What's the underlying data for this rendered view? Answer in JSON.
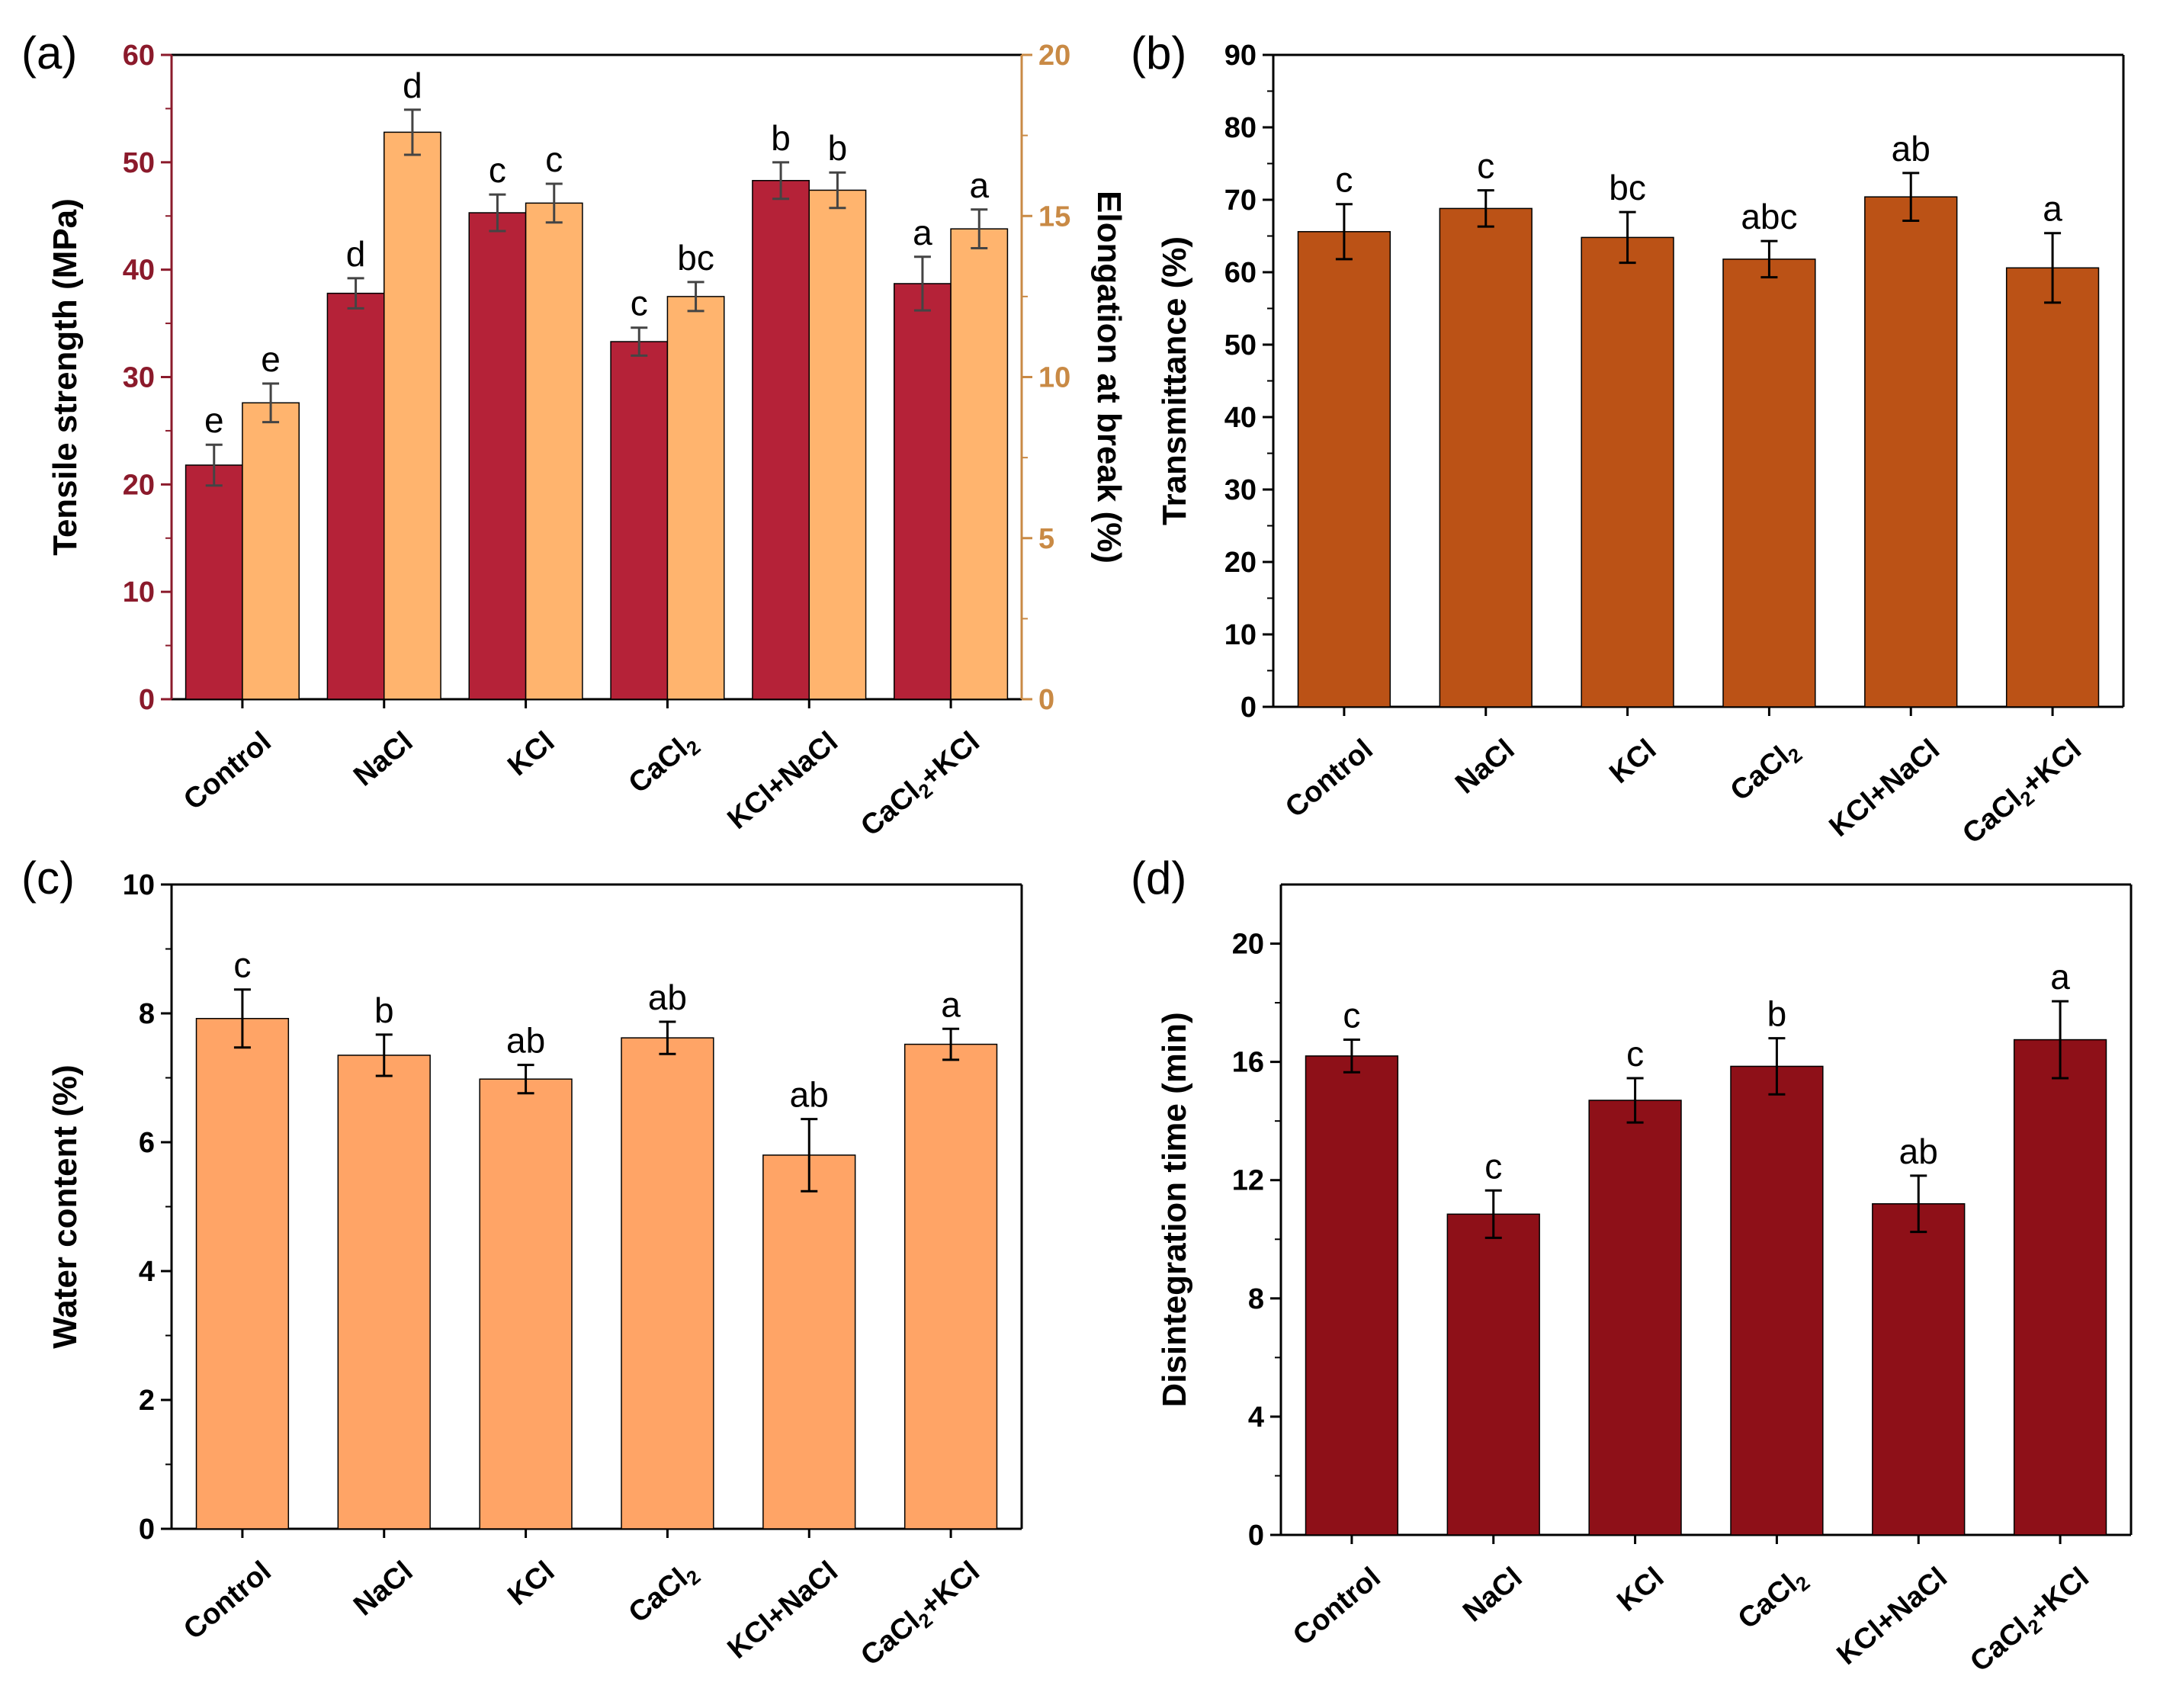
{
  "chart_data": [
    {
      "id": "a",
      "panel_label": "(a)",
      "type": "bar",
      "categories": [
        "Control",
        "NaCl",
        "KCl",
        "CaCl2",
        "KCl+NaCl",
        "CaCl2+KCl"
      ],
      "ylabel": "Tensile strength (MPa)",
      "y2label": "Elongation at break (%)",
      "ylim": [
        0,
        60
      ],
      "yticks": [
        0,
        10,
        20,
        30,
        40,
        50,
        60
      ],
      "y2lim": [
        0,
        20
      ],
      "y2ticks": [
        0,
        5,
        10,
        15,
        20
      ],
      "series": [
        {
          "name": "Tensile strength",
          "axis": "left",
          "color": "#b52238",
          "values": [
            21.8,
            37.8,
            45.3,
            33.3,
            48.3,
            38.7
          ],
          "errors": [
            1.9,
            1.4,
            1.7,
            1.3,
            1.7,
            2.5
          ],
          "letters": [
            "e",
            "d",
            "c",
            "c",
            "b",
            "a"
          ]
        },
        {
          "name": "Elongation at break",
          "axis": "right",
          "color": "#ffb46e",
          "values": [
            9.2,
            17.6,
            15.4,
            12.5,
            15.8,
            14.6
          ],
          "errors": [
            0.6,
            0.7,
            0.6,
            0.45,
            0.55,
            0.6
          ],
          "letters": [
            "e",
            "d",
            "c",
            "bc",
            "b",
            "a"
          ]
        }
      ],
      "left_axis_color": "#8b1a2b",
      "right_axis_color": "#c98a45"
    },
    {
      "id": "b",
      "panel_label": "(b)",
      "type": "bar",
      "categories": [
        "Control",
        "NaCl",
        "KCl",
        "CaCl2",
        "KCl+NaCl",
        "CaCl2+KCl"
      ],
      "ylabel": "Transmittance (%)",
      "ylim": [
        0,
        90
      ],
      "yticks": [
        0,
        10,
        20,
        30,
        40,
        50,
        60,
        70,
        80,
        90
      ],
      "series": [
        {
          "name": "Transmittance",
          "color": "#bb5216",
          "values": [
            65.6,
            68.8,
            64.8,
            61.8,
            70.4,
            60.6
          ],
          "errors": [
            3.8,
            2.5,
            3.5,
            2.5,
            3.3,
            4.8
          ],
          "letters": [
            "c",
            "c",
            "bc",
            "abc",
            "ab",
            "a"
          ]
        }
      ]
    },
    {
      "id": "c",
      "panel_label": "(c)",
      "type": "bar",
      "categories": [
        "Control",
        "NaCl",
        "KCl",
        "CaCl2",
        "KCl+NaCl",
        "CaCl2+KCl"
      ],
      "ylabel": "Water content (%)",
      "ylim": [
        0,
        10
      ],
      "yticks": [
        0,
        2,
        4,
        6,
        8,
        10
      ],
      "series": [
        {
          "name": "Water content",
          "color": "#ffa466",
          "values": [
            7.92,
            7.35,
            6.98,
            7.62,
            5.8,
            7.52
          ],
          "errors": [
            0.45,
            0.32,
            0.22,
            0.25,
            0.56,
            0.24
          ],
          "letters": [
            "c",
            "b",
            "ab",
            "ab",
            "ab",
            "a"
          ]
        }
      ]
    },
    {
      "id": "d",
      "panel_label": "(d)",
      "type": "bar",
      "categories": [
        "Control",
        "NaCl",
        "KCl",
        "CaCl2",
        "KCl+NaCl",
        "CaCl2+KCl"
      ],
      "ylabel": "Disintegration time (min)",
      "ylim": [
        0,
        22
      ],
      "yticks": [
        0,
        4,
        8,
        12,
        16,
        20
      ],
      "series": [
        {
          "name": "Disintegration time",
          "color": "#8e1018",
          "values": [
            16.2,
            10.85,
            14.7,
            15.85,
            11.2,
            16.75
          ],
          "errors": [
            0.55,
            0.8,
            0.75,
            0.95,
            0.95,
            1.3
          ],
          "letters": [
            "c",
            "c",
            "c",
            "b",
            "ab",
            "a"
          ]
        }
      ]
    }
  ]
}
